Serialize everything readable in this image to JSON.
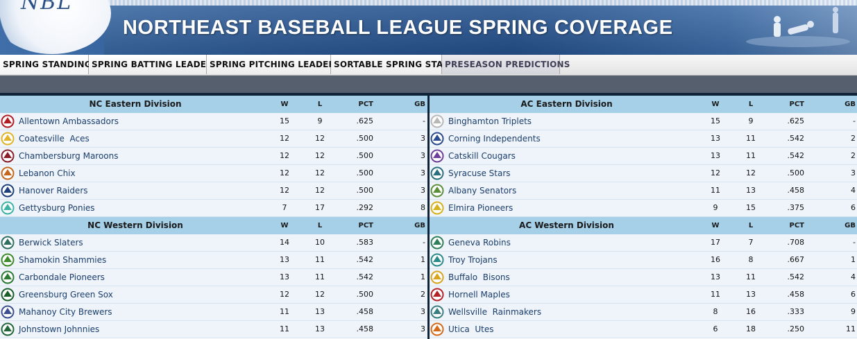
{
  "banner": {
    "logo_text": "NBL",
    "title": "NORTHEAST BASEBALL LEAGUE SPRING COVERAGE"
  },
  "nav": {
    "tabs": [
      {
        "label": "SPRING STANDINGS"
      },
      {
        "label": "SPRING BATTING LEADERS"
      },
      {
        "label": "SPRING PITCHING LEADERS"
      },
      {
        "label": "SORTABLE SPRING STATS"
      },
      {
        "label": "PRESEASON PREDICTIONS"
      }
    ]
  },
  "columns": {
    "w": "W",
    "l": "L",
    "pct": "PCT",
    "gb": "GB"
  },
  "left": {
    "divisions": [
      {
        "name": "NC Eastern Division",
        "teams": [
          {
            "name": "Allentown Ambassadors",
            "w": "15",
            "l": "9",
            "pct": ".625",
            "gb": "-",
            "icon": "allentown-logo-icon",
            "color": "#b01e23"
          },
          {
            "name": "Coatesville  Aces",
            "w": "12",
            "l": "12",
            "pct": ".500",
            "gb": "3",
            "icon": "coatesville-logo-icon",
            "color": "#e0b52b"
          },
          {
            "name": "Chambersburg Maroons",
            "w": "12",
            "l": "12",
            "pct": ".500",
            "gb": "3",
            "icon": "chambersburg-logo-icon",
            "color": "#8a1f2b"
          },
          {
            "name": "Lebanon Chix",
            "w": "12",
            "l": "12",
            "pct": ".500",
            "gb": "3",
            "icon": "lebanon-logo-icon",
            "color": "#c4681e"
          },
          {
            "name": "Hanover Raiders",
            "w": "12",
            "l": "12",
            "pct": ".500",
            "gb": "3",
            "icon": "hanover-logo-icon",
            "color": "#1d3f7a"
          },
          {
            "name": "Gettysburg Ponies",
            "w": "7",
            "l": "17",
            "pct": ".292",
            "gb": "8",
            "icon": "gettysburg-logo-icon",
            "color": "#3fb3a6"
          }
        ]
      },
      {
        "name": "NC Western Division",
        "teams": [
          {
            "name": "Berwick Slaters",
            "w": "14",
            "l": "10",
            "pct": ".583",
            "gb": "-",
            "icon": "berwick-logo-icon",
            "color": "#2f6d5e"
          },
          {
            "name": "Shamokin Shammies",
            "w": "13",
            "l": "11",
            "pct": ".542",
            "gb": "1",
            "icon": "shamokin-logo-icon",
            "color": "#3f8a2c"
          },
          {
            "name": "Carbondale Pioneers",
            "w": "13",
            "l": "11",
            "pct": ".542",
            "gb": "1",
            "icon": "carbondale-logo-icon",
            "color": "#2d7a34"
          },
          {
            "name": "Greensburg Green Sox",
            "w": "12",
            "l": "12",
            "pct": ".500",
            "gb": "2",
            "icon": "greensburg-logo-icon",
            "color": "#1b5e2a"
          },
          {
            "name": "Mahanoy City Brewers",
            "w": "11",
            "l": "13",
            "pct": ".458",
            "gb": "3",
            "icon": "mahanoy-logo-icon",
            "color": "#3c4f8f"
          },
          {
            "name": "Johnstown Johnnies",
            "w": "11",
            "l": "13",
            "pct": ".458",
            "gb": "3",
            "icon": "johnstown-logo-icon",
            "color": "#23663a"
          }
        ]
      }
    ]
  },
  "right": {
    "divisions": [
      {
        "name": "AC Eastern Division",
        "teams": [
          {
            "name": "Binghamton Triplets",
            "w": "15",
            "l": "9",
            "pct": ".625",
            "gb": "-",
            "icon": "binghamton-logo-icon",
            "color": "#b8b8b8"
          },
          {
            "name": "Corning Independents",
            "w": "13",
            "l": "11",
            "pct": ".542",
            "gb": "2",
            "icon": "corning-logo-icon",
            "color": "#2b4a8f"
          },
          {
            "name": "Catskill Cougars",
            "w": "13",
            "l": "11",
            "pct": ".542",
            "gb": "2",
            "icon": "catskill-logo-icon",
            "color": "#6d3f9a"
          },
          {
            "name": "Syracuse Stars",
            "w": "12",
            "l": "12",
            "pct": ".500",
            "gb": "3",
            "icon": "syracuse-logo-icon",
            "color": "#2a6f7d"
          },
          {
            "name": "Albany Senators",
            "w": "11",
            "l": "13",
            "pct": ".458",
            "gb": "4",
            "icon": "albany-logo-icon",
            "color": "#5c8f3a"
          },
          {
            "name": "Elmira Pioneers",
            "w": "9",
            "l": "15",
            "pct": ".375",
            "gb": "6",
            "icon": "elmira-logo-icon",
            "color": "#d6b21c"
          }
        ]
      },
      {
        "name": "AC Western Division",
        "teams": [
          {
            "name": "Geneva Robins",
            "w": "17",
            "l": "7",
            "pct": ".708",
            "gb": "-",
            "icon": "geneva-logo-icon",
            "color": "#2e7f5a"
          },
          {
            "name": "Troy Trojans",
            "w": "16",
            "l": "8",
            "pct": ".667",
            "gb": "1",
            "icon": "troy-logo-icon",
            "color": "#2b8a8a"
          },
          {
            "name": "Buffalo  Bisons",
            "w": "13",
            "l": "11",
            "pct": ".542",
            "gb": "4",
            "icon": "buffalo-logo-icon",
            "color": "#d9a520"
          },
          {
            "name": "Hornell Maples",
            "w": "11",
            "l": "13",
            "pct": ".458",
            "gb": "6",
            "icon": "hornell-logo-icon",
            "color": "#b32227"
          },
          {
            "name": "Wellsville  Rainmakers",
            "w": "8",
            "l": "16",
            "pct": ".333",
            "gb": "9",
            "icon": "wellsville-logo-icon",
            "color": "#3a7d83"
          },
          {
            "name": "Utica  Utes",
            "w": "6",
            "l": "18",
            "pct": ".250",
            "gb": "11",
            "icon": "utica-logo-icon",
            "color": "#d46a1a"
          }
        ]
      }
    ]
  }
}
